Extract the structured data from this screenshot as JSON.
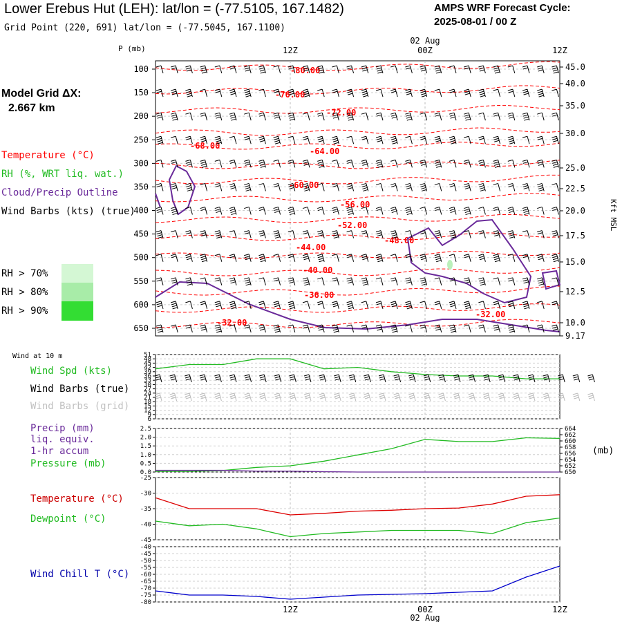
{
  "header": {
    "title": "Lower Erebus Hut (LEH):  lat/lon = (-77.5105, 167.1482)",
    "subtitle": "Grid Point (220, 691) lat/lon = (-77.5045, 167.1100)",
    "cycle_line1": "AMPS WRF Forecast Cycle:",
    "cycle_line2": "2025-08-01 / 00  Z"
  },
  "left_legend": {
    "model_grid_label": "Model Grid ΔX:",
    "model_grid_value": "2.667 km",
    "temperature": "Temperature (°C)",
    "rh": "RH (%, WRT liq. wat.)",
    "cloud": "Cloud/Precip Outline",
    "wind_barbs": "Wind Barbs (kts) (true)",
    "rh70": "RH > 70%",
    "rh80": "RH > 80%",
    "rh90": "RH > 90%"
  },
  "colors": {
    "temperature": "#ff0000",
    "rh": "#22bb22",
    "cloud": "#6a2a9a",
    "wind_chill": "#0000cc",
    "rh70": "#d4f7d4",
    "rh80": "#a8eca8",
    "rh90": "#33dd33",
    "grid": "#aaaaaa"
  },
  "time_axis": {
    "top_labels": [
      "12Z",
      "00Z",
      "12Z"
    ],
    "top_date": "02 Aug",
    "bottom_labels": [
      "12Z",
      "00Z",
      "12Z"
    ],
    "bottom_date": "02 Aug"
  },
  "cross_section": {
    "p_label": "P (mb)",
    "pressure_ticks": [
      "100",
      "150",
      "200",
      "250",
      "300",
      "350",
      "400",
      "450",
      "500",
      "550",
      "600",
      "650"
    ],
    "height_ticks": [
      "45.0",
      "40.0",
      "35.0",
      "30.0",
      "25.0",
      "22.5",
      "20.0",
      "17.5",
      "15.0",
      "12.5",
      "10.0",
      "9.17"
    ],
    "right_axis_label": "Kft MSL",
    "temp_labels": [
      "-80.00",
      "-76.00",
      "-72.00",
      "-68.00",
      "-64.00",
      "-60.00",
      "-56.00",
      "-52.00",
      "-48.00",
      "-44.00",
      "-40.00",
      "-36.00",
      "-32.00",
      "-32.00"
    ]
  },
  "panel_wind": {
    "small_label": "Wind at 10 m",
    "spd_label": "Wind Spd (kts)",
    "barbs_true_label": "Wind Barbs (true)",
    "barbs_grid_label": "Wind Barbs (grid)",
    "ticks": [
      "51",
      "48",
      "45",
      "42",
      "39",
      "36",
      "33",
      "30",
      "27",
      "24",
      "21",
      "18",
      "15",
      "12",
      "9",
      "6"
    ]
  },
  "panel_precip": {
    "precip_label": "Precip (mm)",
    "liq_label": "liq. equiv.",
    "accum_label": "1-hr accum",
    "pressure_label": "Pressure (mb)",
    "left_ticks": [
      "2.5",
      "2.0",
      "1.5",
      "1.0",
      "0.5",
      "0.0"
    ],
    "right_ticks": [
      "664",
      "662",
      "660",
      "658",
      "656",
      "654",
      "652",
      "650"
    ],
    "right_unit": "(mb)"
  },
  "panel_temp": {
    "temp_label": "Temperature (°C)",
    "dew_label": "Dewpoint (°C)",
    "ticks": [
      "-25",
      "-30",
      "-35",
      "-40",
      "-45"
    ]
  },
  "panel_chill": {
    "label": "Wind Chill T (°C)",
    "ticks": [
      "-40",
      "-45",
      "-50",
      "-55",
      "-60",
      "-65",
      "-70",
      "-75",
      "-80"
    ]
  },
  "chart_data": [
    {
      "type": "line",
      "panel": "wind_speed_10m",
      "x_hours": [
        0,
        3,
        6,
        9,
        12,
        15,
        18,
        21,
        24,
        27,
        30,
        33,
        36
      ],
      "series": [
        {
          "name": "Wind Spd (kts)",
          "values": [
            41,
            44,
            44,
            48,
            48,
            41,
            42,
            39,
            37,
            36,
            36,
            34,
            34
          ]
        }
      ],
      "ylim": [
        6,
        51
      ]
    },
    {
      "type": "line",
      "panel": "pressure_precip",
      "x_hours": [
        0,
        3,
        6,
        9,
        12,
        15,
        18,
        21,
        24,
        27,
        30,
        33,
        36
      ],
      "series": [
        {
          "name": "Pressure (mb)",
          "values": [
            650.2,
            650.2,
            650.5,
            651.5,
            652,
            653.5,
            655.5,
            657.5,
            660.5,
            659.8,
            659.8,
            661,
            660.8
          ]
        },
        {
          "name": "Precip (mm)",
          "values": [
            0.1,
            0.1,
            0.1,
            0.05,
            0.05,
            0.02,
            0,
            0,
            0,
            0,
            0,
            0,
            0
          ]
        }
      ],
      "ylim_left": [
        0,
        2.5
      ],
      "ylim_right": [
        650,
        664
      ]
    },
    {
      "type": "line",
      "panel": "temperature_dewpoint",
      "x_hours": [
        0,
        3,
        6,
        9,
        12,
        15,
        18,
        21,
        24,
        27,
        30,
        33,
        36
      ],
      "series": [
        {
          "name": "Temperature (°C)",
          "values": [
            -31.5,
            -35,
            -35,
            -35,
            -37,
            -36.5,
            -35.8,
            -35.5,
            -35,
            -34.8,
            -33.5,
            -31,
            -30.5
          ]
        },
        {
          "name": "Dewpoint (°C)",
          "values": [
            -39,
            -40.5,
            -40,
            -41.5,
            -44,
            -43,
            -42.5,
            -42,
            -42,
            -42,
            -43,
            -39.5,
            -38
          ]
        }
      ],
      "ylim": [
        -45,
        -25
      ]
    },
    {
      "type": "line",
      "panel": "wind_chill",
      "x_hours": [
        0,
        3,
        6,
        9,
        12,
        15,
        18,
        21,
        24,
        27,
        30,
        33,
        36
      ],
      "series": [
        {
          "name": "Wind Chill T (°C)",
          "values": [
            -72,
            -75,
            -75,
            -76,
            -78,
            -76.5,
            -75,
            -74.5,
            -74,
            -73,
            -72,
            -62,
            -54
          ]
        }
      ],
      "ylim": [
        -80,
        -40
      ]
    }
  ]
}
